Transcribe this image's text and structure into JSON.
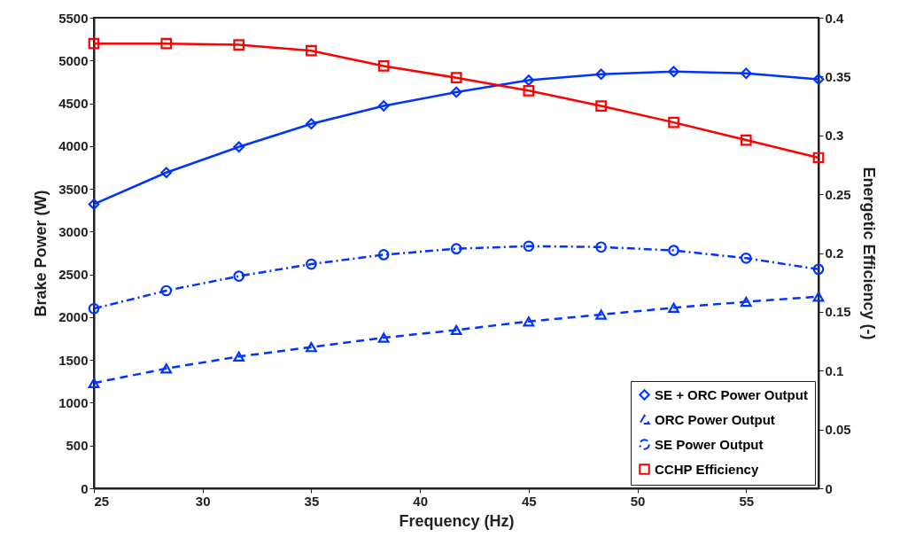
{
  "chart_data": {
    "type": "line",
    "xlabel": "Frequency (Hz)",
    "ylabel": "Brake Power (W)",
    "y2label": "Energetic  Efficiency (-)",
    "x": [
      25,
      28.33,
      31.67,
      35,
      38.33,
      41.67,
      45,
      48.33,
      51.67,
      55,
      58.33
    ],
    "series": [
      {
        "name": "SE + ORC Power Output",
        "color": "#0033ff",
        "marker": "diamond",
        "line_style": "solid",
        "values": [
          3320,
          3690,
          3990,
          4260,
          4470,
          4630,
          4770,
          4840,
          4870,
          4850,
          4780
        ]
      },
      {
        "name": "ORC Power Output",
        "color": "#0033ff",
        "marker": "triangle",
        "line_style": "dashed",
        "values": [
          1230,
          1400,
          1540,
          1650,
          1760,
          1850,
          1950,
          2030,
          2110,
          2180,
          2240
        ]
      },
      {
        "name": "SE Power Output",
        "color": "#0033ff",
        "marker": "circle",
        "line_style": "dashdot",
        "values": [
          2100,
          2310,
          2480,
          2620,
          2730,
          2800,
          2830,
          2820,
          2780,
          2690,
          2560
        ]
      },
      {
        "name": "CCHP Efficiency",
        "color": "#ff0000",
        "marker": "square",
        "line_style": "solid",
        "axis": "y2",
        "values": [
          0.378,
          0.378,
          0.377,
          0.372,
          0.359,
          0.349,
          0.338,
          0.325,
          0.311,
          0.296,
          0.281
        ]
      }
    ],
    "xlim": [
      25,
      58.33
    ],
    "xticks": [
      25,
      30,
      35,
      40,
      45,
      50,
      55
    ],
    "ylim": [
      0,
      5500
    ],
    "yticks": [
      0,
      500,
      1000,
      1500,
      2000,
      2500,
      3000,
      3500,
      4000,
      4500,
      5000,
      5500
    ],
    "y2lim": [
      0,
      0.4
    ],
    "y2ticks": [
      0,
      0.05,
      0.1,
      0.15,
      0.2,
      0.25,
      0.3,
      0.35,
      0.4
    ],
    "grid": false,
    "legend": "bottom right"
  }
}
